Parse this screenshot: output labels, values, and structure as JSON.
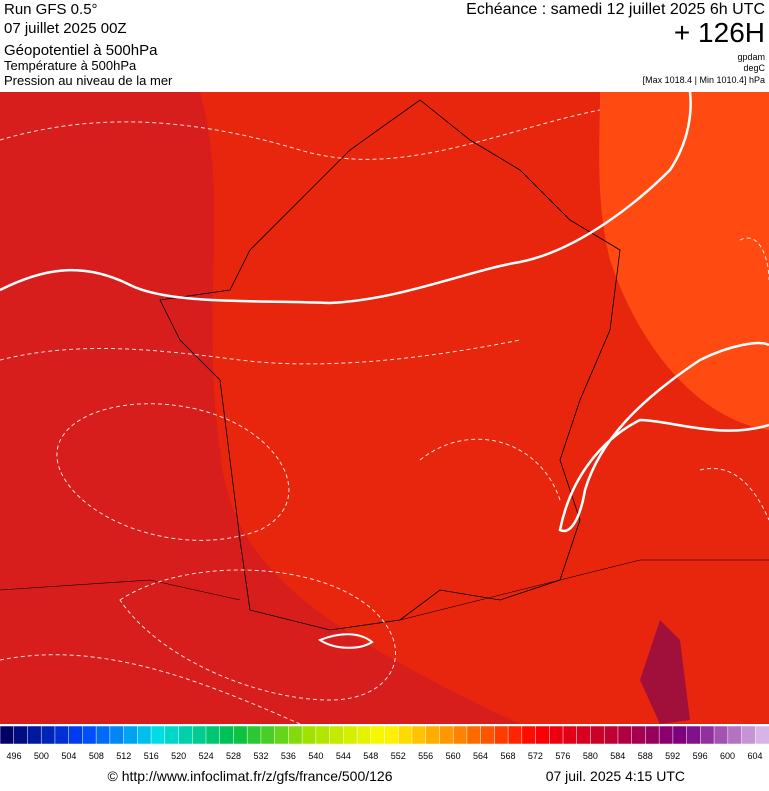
{
  "header": {
    "run": "Run GFS 0.5°",
    "date": "07 juillet 2025 00Z",
    "param1": "Géopotentiel à 500hPa",
    "param2": "Température à 500hPa",
    "param3": "Pression au niveau de la mer",
    "echeance": "Echéance : samedi 12 juillet 2025 6h UTC",
    "offset": "+ 126H",
    "unit1": "gpdam",
    "unit2": "degC",
    "range": "[Max 1018.4 | Min 1010.4] hPa"
  },
  "scale": {
    "labels": [
      496,
      500,
      504,
      508,
      512,
      516,
      520,
      524,
      528,
      532,
      536,
      540,
      544,
      548,
      552,
      556,
      560,
      564,
      568,
      572,
      576,
      580,
      584,
      588,
      592,
      596,
      600,
      604
    ]
  },
  "footer": {
    "url": "© http://www.infoclimat.fr/z/gfs/france/500/126",
    "time": "07 juil. 2025  4:15 UTC"
  }
}
